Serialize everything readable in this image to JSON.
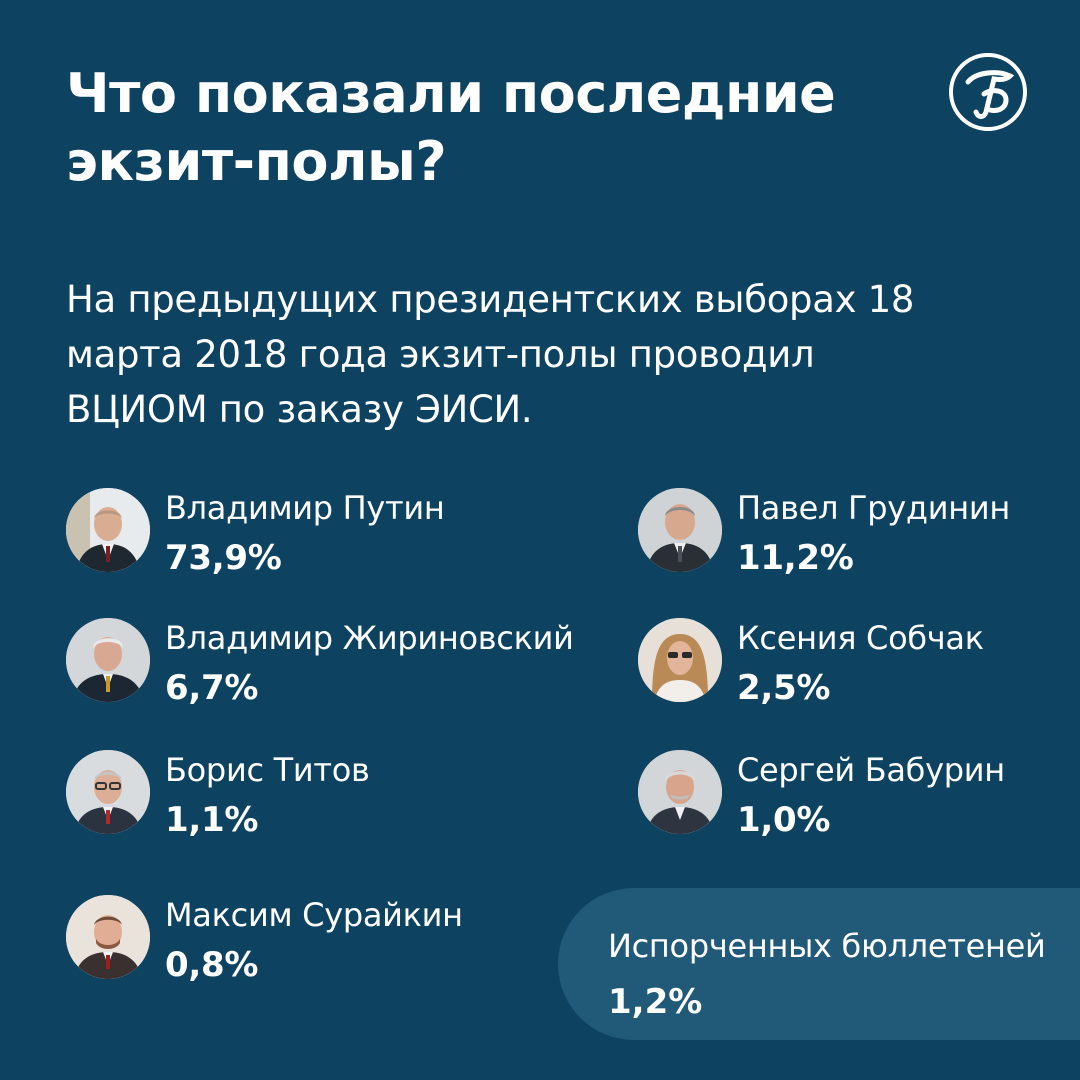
{
  "header": {
    "title": "Что показали последние экзит-полы?",
    "logo_icon": "publication-logo-icon"
  },
  "intro": "На предыдущих президентских выборах 18 марта 2018 года экзит-полы проводил ВЦИОМ по заказу ЭИСИ.",
  "candidates": [
    {
      "name": "Владимир Путин",
      "result": "73,9%"
    },
    {
      "name": "Павел Грудинин",
      "result": "11,2%"
    },
    {
      "name": "Владимир Жириновский",
      "result": "6,7%"
    },
    {
      "name": "Ксения Собчак",
      "result": "2,5%"
    },
    {
      "name": "Борис Титов",
      "result": "1,1%"
    },
    {
      "name": "Сергей Бабурин",
      "result": "1,0%"
    },
    {
      "name": "Максим Сурайкин",
      "result": "0,8%"
    }
  ],
  "spoiled": {
    "label": "Испорченных бюллетеней",
    "result": "1,2%"
  },
  "colors": {
    "background": "#0d4261",
    "panel": "#215978",
    "text": "#ffffff"
  }
}
